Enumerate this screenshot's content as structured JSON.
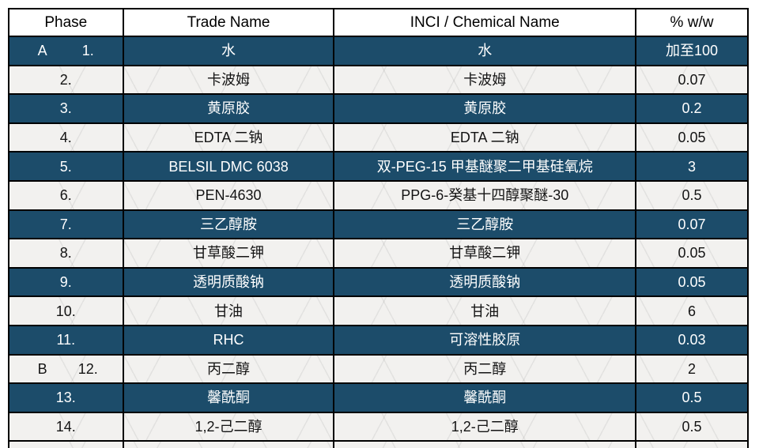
{
  "colors": {
    "dark_row_bg": "#1c4c6a",
    "light_row_bg": "#f2f1ef",
    "border": "#000000",
    "dark_row_text": "#ffffff",
    "light_row_text": "#141414"
  },
  "table": {
    "headers": [
      "Phase",
      "Trade Name",
      "INCI / Chemical Name",
      "% w/w"
    ],
    "rows": [
      {
        "phase": "A",
        "num": "1.",
        "trade": "水",
        "inci": "水",
        "pct": "加至100",
        "dark": true
      },
      {
        "phase": "",
        "num": "2.",
        "trade": "卡波姆",
        "inci": "卡波姆",
        "pct": "0.07",
        "dark": false
      },
      {
        "phase": "",
        "num": "3.",
        "trade": "黄原胶",
        "inci": "黄原胶",
        "pct": "0.2",
        "dark": true
      },
      {
        "phase": "",
        "num": "4.",
        "trade": "EDTA 二钠",
        "inci": "EDTA 二钠",
        "pct": "0.05",
        "dark": false
      },
      {
        "phase": "",
        "num": "5.",
        "trade": "BELSIL DMC 6038",
        "inci": "双-PEG-15 甲基醚聚二甲基硅氧烷",
        "pct": "3",
        "dark": true
      },
      {
        "phase": "",
        "num": "6.",
        "trade": "PEN-4630",
        "inci": "PPG-6-癸基十四醇聚醚-30",
        "pct": "0.5",
        "dark": false
      },
      {
        "phase": "",
        "num": "7.",
        "trade": "三乙醇胺",
        "inci": "三乙醇胺",
        "pct": "0.07",
        "dark": true
      },
      {
        "phase": "",
        "num": "8.",
        "trade": "甘草酸二钾",
        "inci": "甘草酸二钾",
        "pct": "0.05",
        "dark": false
      },
      {
        "phase": "",
        "num": "9.",
        "trade": "透明质酸钠",
        "inci": "透明质酸钠",
        "pct": "0.05",
        "dark": true
      },
      {
        "phase": "",
        "num": "10.",
        "trade": "甘油",
        "inci": "甘油",
        "pct": "6",
        "dark": false
      },
      {
        "phase": "",
        "num": "11.",
        "trade": "RHC",
        "inci": "可溶性胶原",
        "pct": "0.03",
        "dark": true
      },
      {
        "phase": "B",
        "num": "12.",
        "trade": "丙二醇",
        "inci": "丙二醇",
        "pct": "2",
        "dark": false
      },
      {
        "phase": "",
        "num": "13.",
        "trade": "馨酰酮",
        "inci": "馨酰酮",
        "pct": "0.5",
        "dark": true
      },
      {
        "phase": "",
        "num": "14.",
        "trade": "1,2-己二醇",
        "inci": "1,2-己二醇",
        "pct": "0.5",
        "dark": false
      }
    ]
  }
}
